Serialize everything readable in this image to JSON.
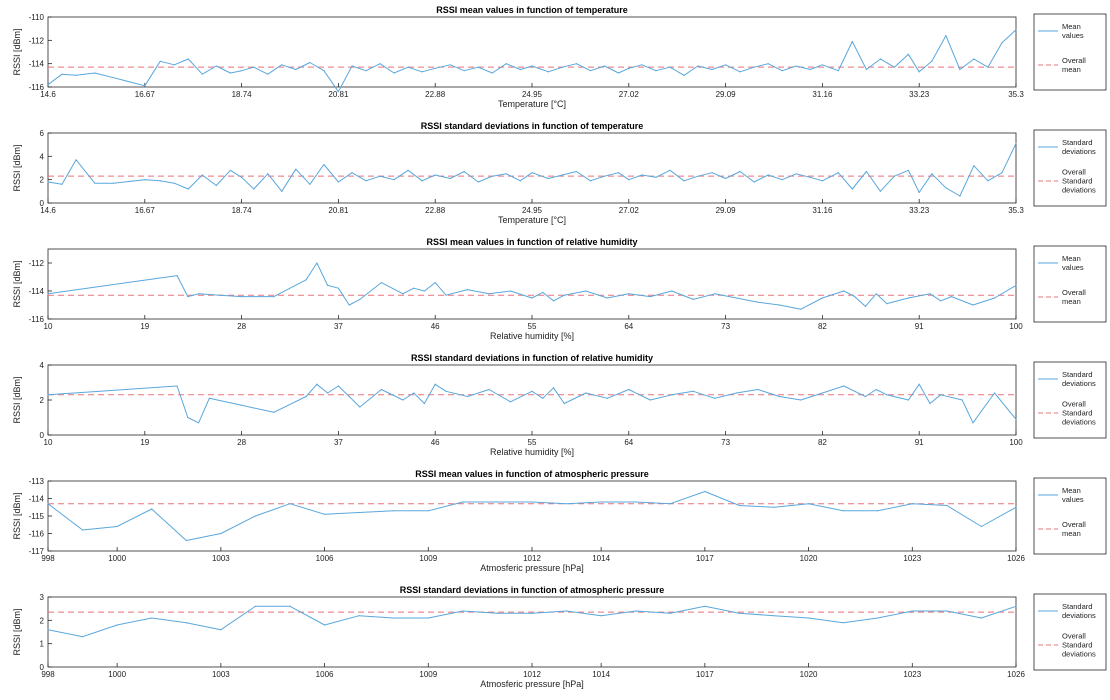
{
  "colors": {
    "series": "#5aa7dc",
    "mean_line": "#e8747a",
    "axis": "#262626"
  },
  "chart_data": [
    {
      "type": "line",
      "title": "RSSI mean values in function of temperature",
      "xlabel": "Temperature [°C]",
      "ylabel": "RSSI [dBm]",
      "xlim": [
        14.6,
        35.3
      ],
      "ylim": [
        -116,
        -110
      ],
      "xticks": [
        14.6,
        16.67,
        18.74,
        20.81,
        22.88,
        24.95,
        27.02,
        29.09,
        31.16,
        33.23,
        35.3
      ],
      "xtick_labels": [
        "14.6",
        "16.67",
        "18.74",
        "20.81",
        "22.88",
        "24.95",
        "27.02",
        "29.09",
        "31.16",
        "33.23",
        "35.3"
      ],
      "yticks": [
        -116,
        -114,
        -112,
        -110
      ],
      "ytick_labels": [
        "-116",
        "-114",
        "-112",
        "-110"
      ],
      "legend": [
        "Mean\nvalues",
        "Overall\nmean"
      ],
      "overall_value": -114.3,
      "series": [
        {
          "x": [
            14.6,
            14.9,
            15.2,
            15.6,
            16.0,
            16.67,
            17.0,
            17.3,
            17.6,
            17.9,
            18.2,
            18.5,
            18.74,
            19.0,
            19.3,
            19.6,
            19.9,
            20.2,
            20.5,
            20.81,
            21.1,
            21.4,
            21.7,
            22.0,
            22.3,
            22.6,
            22.88,
            23.2,
            23.5,
            23.8,
            24.1,
            24.4,
            24.7,
            24.95,
            25.3,
            25.6,
            25.9,
            26.2,
            26.5,
            26.8,
            27.02,
            27.3,
            27.6,
            27.9,
            28.2,
            28.5,
            28.8,
            29.09,
            29.4,
            29.7,
            30.0,
            30.3,
            30.6,
            30.9,
            31.16,
            31.5,
            31.8,
            32.1,
            32.4,
            32.7,
            33.0,
            33.23,
            33.5,
            33.8,
            34.1,
            34.4,
            34.7,
            35.0,
            35.3
          ],
          "y": [
            -115.8,
            -114.9,
            -115.0,
            -114.8,
            -115.2,
            -115.9,
            -113.8,
            -114.1,
            -113.6,
            -114.9,
            -114.2,
            -114.8,
            -114.6,
            -114.3,
            -114.9,
            -114.1,
            -114.5,
            -113.9,
            -114.6,
            -116.4,
            -114.2,
            -114.6,
            -114.0,
            -114.8,
            -114.3,
            -114.7,
            -114.4,
            -114.1,
            -114.6,
            -114.3,
            -114.8,
            -114.0,
            -114.5,
            -114.2,
            -114.7,
            -114.3,
            -114.0,
            -114.6,
            -114.2,
            -114.8,
            -114.4,
            -114.1,
            -114.6,
            -114.3,
            -115.0,
            -114.2,
            -114.5,
            -114.1,
            -114.7,
            -114.3,
            -114.0,
            -114.6,
            -114.2,
            -114.5,
            -114.1,
            -114.6,
            -112.1,
            -114.5,
            -113.6,
            -114.3,
            -113.2,
            -114.7,
            -113.8,
            -111.6,
            -114.5,
            -113.6,
            -114.3,
            -112.2,
            -111.1
          ]
        }
      ]
    },
    {
      "type": "line",
      "title": "RSSI standard deviations in function of temperature",
      "xlabel": "Temperature [°C]",
      "ylabel": "RSSI [dBm]",
      "xlim": [
        14.6,
        35.3
      ],
      "ylim": [
        0,
        6
      ],
      "xticks": [
        14.6,
        16.67,
        18.74,
        20.81,
        22.88,
        24.95,
        27.02,
        29.09,
        31.16,
        33.23,
        35.3
      ],
      "xtick_labels": [
        "14.6",
        "16.67",
        "18.74",
        "20.81",
        "22.88",
        "24.95",
        "27.02",
        "29.09",
        "31.16",
        "33.23",
        "35.3"
      ],
      "yticks": [
        0,
        2,
        4,
        6
      ],
      "ytick_labels": [
        "0",
        "2",
        "4",
        "6"
      ],
      "legend": [
        "Standard\ndeviations",
        "Overall\nStandard\ndeviations"
      ],
      "overall_value": 2.3,
      "series": [
        {
          "x": [
            14.6,
            14.9,
            15.2,
            15.6,
            16.0,
            16.67,
            17.0,
            17.3,
            17.6,
            17.9,
            18.2,
            18.5,
            18.74,
            19.0,
            19.3,
            19.6,
            19.9,
            20.2,
            20.5,
            20.81,
            21.1,
            21.4,
            21.7,
            22.0,
            22.3,
            22.6,
            22.88,
            23.2,
            23.5,
            23.8,
            24.1,
            24.4,
            24.7,
            24.95,
            25.3,
            25.6,
            25.9,
            26.2,
            26.5,
            26.8,
            27.02,
            27.3,
            27.6,
            27.9,
            28.2,
            28.5,
            28.8,
            29.09,
            29.4,
            29.7,
            30.0,
            30.3,
            30.6,
            30.9,
            31.16,
            31.5,
            31.8,
            32.1,
            32.4,
            32.7,
            33.0,
            33.23,
            33.5,
            33.8,
            34.1,
            34.4,
            34.7,
            35.0,
            35.3
          ],
          "y": [
            1.8,
            1.6,
            3.7,
            1.7,
            1.7,
            2.0,
            1.9,
            1.7,
            1.2,
            2.4,
            1.5,
            2.8,
            2.2,
            1.2,
            2.5,
            1.0,
            2.9,
            1.6,
            3.3,
            1.8,
            2.6,
            1.9,
            2.3,
            2.0,
            2.8,
            1.9,
            2.4,
            2.1,
            2.7,
            1.8,
            2.3,
            2.5,
            1.9,
            2.6,
            2.1,
            2.4,
            2.7,
            1.9,
            2.3,
            2.6,
            2.0,
            2.4,
            2.2,
            2.8,
            1.9,
            2.3,
            2.6,
            2.1,
            2.7,
            1.8,
            2.4,
            2.0,
            2.5,
            2.2,
            1.9,
            2.6,
            1.2,
            2.7,
            1.0,
            2.3,
            2.8,
            0.9,
            2.5,
            1.3,
            0.6,
            3.2,
            1.9,
            2.6,
            5.1
          ]
        }
      ]
    },
    {
      "type": "line",
      "title": "RSSI mean values in function of relative humidity",
      "xlabel": "Relative humidity [%]",
      "ylabel": "RSSI [dBm]",
      "xlim": [
        10,
        100
      ],
      "ylim": [
        -116,
        -111
      ],
      "xticks": [
        10,
        19,
        28,
        37,
        46,
        55,
        64,
        73,
        82,
        91,
        100
      ],
      "xtick_labels": [
        "10",
        "19",
        "28",
        "37",
        "46",
        "55",
        "64",
        "73",
        "82",
        "91",
        "100"
      ],
      "yticks": [
        -116,
        -114,
        -112
      ],
      "ytick_labels": [
        "-116",
        "-114",
        "-112"
      ],
      "legend": [
        "Mean\nvalues",
        "Overall\nmean"
      ],
      "overall_value": -114.3,
      "series": [
        {
          "x": [
            10,
            22,
            23,
            24,
            26,
            28,
            31,
            34,
            35,
            36,
            37,
            38,
            39,
            41,
            43,
            44,
            45,
            46,
            47,
            49,
            51,
            53,
            55,
            56,
            57,
            58,
            60,
            62,
            64,
            66,
            68,
            70,
            72,
            74,
            76,
            78,
            80,
            82,
            84,
            85,
            86,
            87,
            88,
            90,
            92,
            93,
            94,
            96,
            98,
            100
          ],
          "y": [
            -114.2,
            -112.9,
            -114.4,
            -114.2,
            -114.3,
            -114.4,
            -114.4,
            -113.2,
            -112.0,
            -113.6,
            -113.8,
            -115.0,
            -114.6,
            -113.4,
            -114.2,
            -113.8,
            -114.0,
            -113.4,
            -114.3,
            -113.9,
            -114.2,
            -114.0,
            -114.5,
            -114.1,
            -114.7,
            -114.3,
            -114.0,
            -114.5,
            -114.2,
            -114.4,
            -114.0,
            -114.6,
            -114.2,
            -114.5,
            -114.8,
            -115.0,
            -115.3,
            -114.5,
            -114.0,
            -114.4,
            -115.1,
            -114.2,
            -114.9,
            -114.5,
            -114.2,
            -114.7,
            -114.4,
            -115.0,
            -114.5,
            -113.6
          ]
        }
      ]
    },
    {
      "type": "line",
      "title": "RSSI standard deviations in function of relative humidity",
      "xlabel": "Relative humidity [%]",
      "ylabel": "RSSI [dBm]",
      "xlim": [
        10,
        100
      ],
      "ylim": [
        0,
        4
      ],
      "xticks": [
        10,
        19,
        28,
        37,
        46,
        55,
        64,
        73,
        82,
        91,
        100
      ],
      "xtick_labels": [
        "10",
        "19",
        "28",
        "37",
        "46",
        "55",
        "64",
        "73",
        "82",
        "91",
        "100"
      ],
      "yticks": [
        0,
        2,
        4
      ],
      "ytick_labels": [
        "0",
        "2",
        "4"
      ],
      "legend": [
        "Standard\ndeviations",
        "Overall\nStandard\ndeviations"
      ],
      "overall_value": 2.3,
      "series": [
        {
          "x": [
            10,
            22,
            23,
            24,
            25,
            28,
            31,
            34,
            35,
            36,
            37,
            38,
            39,
            41,
            43,
            44,
            45,
            46,
            47,
            49,
            51,
            53,
            55,
            56,
            57,
            58,
            60,
            62,
            64,
            66,
            68,
            70,
            72,
            74,
            76,
            78,
            80,
            82,
            84,
            85,
            86,
            87,
            88,
            90,
            91,
            92,
            93,
            95,
            96,
            98,
            100
          ],
          "y": [
            2.3,
            2.8,
            1.0,
            0.7,
            2.1,
            1.7,
            1.3,
            2.2,
            2.9,
            2.4,
            2.8,
            2.2,
            1.6,
            2.6,
            2.0,
            2.4,
            1.8,
            2.9,
            2.5,
            2.2,
            2.6,
            1.9,
            2.5,
            2.1,
            2.7,
            1.8,
            2.4,
            2.1,
            2.6,
            2.0,
            2.3,
            2.5,
            2.1,
            2.4,
            2.6,
            2.2,
            2.0,
            2.4,
            2.8,
            2.5,
            2.2,
            2.6,
            2.3,
            2.0,
            2.9,
            1.8,
            2.3,
            2.0,
            0.7,
            2.4,
            0.9
          ]
        }
      ]
    },
    {
      "type": "line",
      "title": "RSSI mean values in function of atmospheric pressure",
      "xlabel": "Atmosferic pressure [hPa]",
      "ylabel": "RSSI [dBm]",
      "xlim": [
        998,
        1026
      ],
      "ylim": [
        -117,
        -113
      ],
      "xticks": [
        998,
        1000,
        1003,
        1006,
        1009,
        1012,
        1014,
        1017,
        1020,
        1023,
        1026
      ],
      "xtick_labels": [
        "998",
        "1000",
        "1003",
        "1006",
        "1009",
        "1012",
        "1014",
        "1017",
        "1020",
        "1023",
        "1026"
      ],
      "yticks": [
        -117,
        -116,
        -115,
        -114,
        -113
      ],
      "ytick_labels": [
        "-117",
        "-116",
        "-115",
        "-114",
        "-113"
      ],
      "legend": [
        "Mean\nvalues",
        "Overall\nmean"
      ],
      "overall_value": -114.3,
      "series": [
        {
          "x": [
            998,
            999,
            1000,
            1001,
            1002,
            1003,
            1004,
            1005,
            1006,
            1007,
            1008,
            1009,
            1010,
            1011,
            1012,
            1013,
            1014,
            1015,
            1016,
            1017,
            1018,
            1019,
            1020,
            1021,
            1022,
            1023,
            1024,
            1025,
            1026
          ],
          "y": [
            -114.3,
            -115.8,
            -115.6,
            -114.6,
            -116.4,
            -116.0,
            -115.0,
            -114.3,
            -114.9,
            -114.8,
            -114.7,
            -114.7,
            -114.2,
            -114.2,
            -114.2,
            -114.3,
            -114.2,
            -114.2,
            -114.3,
            -113.6,
            -114.4,
            -114.5,
            -114.3,
            -114.7,
            -114.7,
            -114.3,
            -114.4,
            -115.6,
            -114.5
          ]
        }
      ]
    },
    {
      "type": "line",
      "title": "RSSI standard deviations in function of atmospheric pressure",
      "xlabel": "Atmosferic pressure [hPa]",
      "ylabel": "RSSI [dBm]",
      "xlim": [
        998,
        1026
      ],
      "ylim": [
        0,
        3
      ],
      "xticks": [
        998,
        1000,
        1003,
        1006,
        1009,
        1012,
        1014,
        1017,
        1020,
        1023,
        1026
      ],
      "xtick_labels": [
        "998",
        "1000",
        "1003",
        "1006",
        "1009",
        "1012",
        "1014",
        "1017",
        "1020",
        "1023",
        "1026"
      ],
      "yticks": [
        0,
        1,
        2,
        3
      ],
      "ytick_labels": [
        "0",
        "1",
        "2",
        "3"
      ],
      "legend": [
        "Standard\ndeviations",
        "Overall\nStandard\ndeviations"
      ],
      "overall_value": 2.35,
      "series": [
        {
          "x": [
            998,
            999,
            1000,
            1001,
            1002,
            1003,
            1004,
            1005,
            1006,
            1007,
            1008,
            1009,
            1010,
            1011,
            1012,
            1013,
            1014,
            1015,
            1016,
            1017,
            1018,
            1019,
            1020,
            1021,
            1022,
            1023,
            1024,
            1025,
            1026
          ],
          "y": [
            1.6,
            1.3,
            1.8,
            2.1,
            1.9,
            1.6,
            2.6,
            2.6,
            1.8,
            2.2,
            2.1,
            2.1,
            2.4,
            2.3,
            2.3,
            2.4,
            2.2,
            2.4,
            2.3,
            2.6,
            2.3,
            2.2,
            2.1,
            1.9,
            2.1,
            2.4,
            2.4,
            2.1,
            2.6
          ]
        }
      ]
    }
  ]
}
